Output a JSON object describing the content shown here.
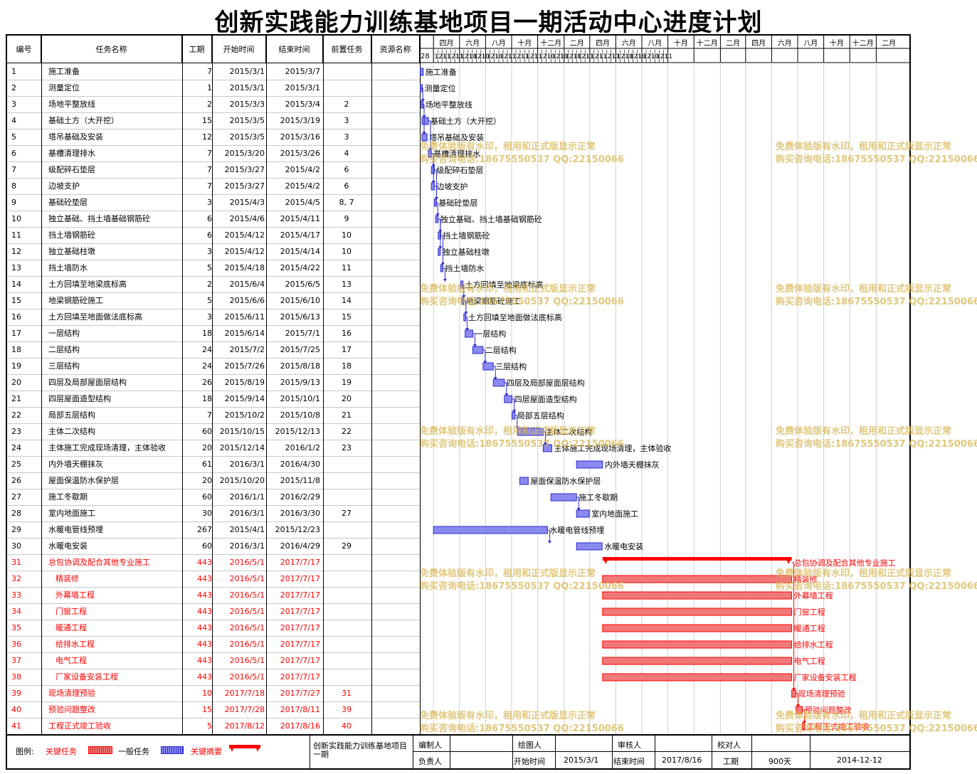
{
  "title": "创新实践能力训练基地项目一期活动中心进度计划",
  "table": {
    "headers": {
      "no": "编号",
      "name": "任务名称",
      "duration": "工期",
      "start": "开始时间",
      "end": "结束时间",
      "pred": "前置任务",
      "resource": "资源名称"
    }
  },
  "tasks": [
    {
      "no": "1",
      "name": "施工准备",
      "dur": "7",
      "start": "2015/3/1",
      "end": "2015/3/7",
      "pred": "",
      "critical": false
    },
    {
      "no": "2",
      "name": "测量定位",
      "dur": "1",
      "start": "2015/3/1",
      "end": "2015/3/1",
      "pred": "",
      "critical": false
    },
    {
      "no": "3",
      "name": "场地平整放线",
      "dur": "2",
      "start": "2015/3/3",
      "end": "2015/3/4",
      "pred": "2",
      "critical": false
    },
    {
      "no": "4",
      "name": "基础土方（大开挖）",
      "dur": "15",
      "start": "2015/3/5",
      "end": "2015/3/19",
      "pred": "3",
      "critical": false
    },
    {
      "no": "5",
      "name": "塔吊基础及安装",
      "dur": "12",
      "start": "2015/3/5",
      "end": "2015/3/16",
      "pred": "3",
      "critical": false
    },
    {
      "no": "6",
      "name": "基槽清理排水",
      "dur": "7",
      "start": "2015/3/20",
      "end": "2015/3/26",
      "pred": "4",
      "critical": false
    },
    {
      "no": "7",
      "name": "级配碎石垫层",
      "dur": "7",
      "start": "2015/3/27",
      "end": "2015/4/2",
      "pred": "6",
      "critical": false
    },
    {
      "no": "8",
      "name": "边坡支护",
      "dur": "7",
      "start": "2015/3/27",
      "end": "2015/4/2",
      "pred": "6",
      "critical": false
    },
    {
      "no": "9",
      "name": "基础砼垫层",
      "dur": "3",
      "start": "2015/4/3",
      "end": "2015/4/5",
      "pred": "8, 7",
      "critical": false
    },
    {
      "no": "10",
      "name": "独立基础、挡土墙基础钢筋砼",
      "dur": "6",
      "start": "2015/4/6",
      "end": "2015/4/11",
      "pred": "9",
      "critical": false
    },
    {
      "no": "11",
      "name": "挡土墙钢筋砼",
      "dur": "6",
      "start": "2015/4/12",
      "end": "2015/4/17",
      "pred": "10",
      "critical": false
    },
    {
      "no": "12",
      "name": "独立基础柱墩",
      "dur": "3",
      "start": "2015/4/12",
      "end": "2015/4/14",
      "pred": "10",
      "critical": false
    },
    {
      "no": "13",
      "name": "挡土墙防水",
      "dur": "5",
      "start": "2015/4/18",
      "end": "2015/4/22",
      "pred": "11",
      "critical": false
    },
    {
      "no": "14",
      "name": "土方回填至地梁底标高",
      "dur": "2",
      "start": "2015/6/4",
      "end": "2015/6/5",
      "pred": "13",
      "critical": false
    },
    {
      "no": "15",
      "name": "地梁钢筋砼施工",
      "dur": "5",
      "start": "2015/6/6",
      "end": "2015/6/10",
      "pred": "14",
      "critical": false
    },
    {
      "no": "16",
      "name": "土方回填至地面做法底标高",
      "dur": "3",
      "start": "2015/6/11",
      "end": "2015/6/13",
      "pred": "15",
      "critical": false
    },
    {
      "no": "17",
      "name": "一层结构",
      "dur": "18",
      "start": "2015/6/14",
      "end": "2015/7/1",
      "pred": "16",
      "critical": false
    },
    {
      "no": "18",
      "name": "二层结构",
      "dur": "24",
      "start": "2015/7/2",
      "end": "2015/7/25",
      "pred": "17",
      "critical": false
    },
    {
      "no": "19",
      "name": "三层结构",
      "dur": "24",
      "start": "2015/7/26",
      "end": "2015/8/18",
      "pred": "18",
      "critical": false
    },
    {
      "no": "20",
      "name": "四层及局部屋面层结构",
      "dur": "26",
      "start": "2015/8/19",
      "end": "2015/9/13",
      "pred": "19",
      "critical": false
    },
    {
      "no": "21",
      "name": "四层屋面造型结构",
      "dur": "18",
      "start": "2015/9/14",
      "end": "2015/10/1",
      "pred": "20",
      "critical": false
    },
    {
      "no": "22",
      "name": "局部五层结构",
      "dur": "7",
      "start": "2015/10/2",
      "end": "2015/10/8",
      "pred": "21",
      "critical": false
    },
    {
      "no": "23",
      "name": "主体二次结构",
      "dur": "60",
      "start": "2015/10/15",
      "end": "2015/12/13",
      "pred": "22",
      "critical": false
    },
    {
      "no": "24",
      "name": "主体施工完成现场清理，主体验收",
      "dur": "20",
      "start": "2015/12/14",
      "end": "2016/1/2",
      "pred": "23",
      "critical": false
    },
    {
      "no": "25",
      "name": "内外墙天棚抹灰",
      "dur": "61",
      "start": "2016/3/1",
      "end": "2016/4/30",
      "pred": "",
      "critical": false
    },
    {
      "no": "26",
      "name": "屋面保温防水保护层",
      "dur": "20",
      "start": "2015/10/20",
      "end": "2015/11/8",
      "pred": "",
      "critical": false
    },
    {
      "no": "27",
      "name": "施工冬歇期",
      "dur": "60",
      "start": "2016/1/1",
      "end": "2016/2/29",
      "pred": "",
      "critical": false
    },
    {
      "no": "28",
      "name": "室内地面施工",
      "dur": "30",
      "start": "2016/3/1",
      "end": "2016/3/30",
      "pred": "27",
      "critical": false
    },
    {
      "no": "29",
      "name": "水暖电管线预埋",
      "dur": "267",
      "start": "2015/4/1",
      "end": "2015/12/23",
      "pred": "",
      "critical": false
    },
    {
      "no": "30",
      "name": "水暖电安装",
      "dur": "60",
      "start": "2016/3/1",
      "end": "2016/4/29",
      "pred": "29",
      "critical": false
    },
    {
      "no": "31",
      "name": "总包协调及配合其他专业施工",
      "dur": "443",
      "start": "2016/5/1",
      "end": "2017/7/17",
      "pred": "",
      "critical": true,
      "summary": true,
      "gname": "总包协调及配合其他专业施工"
    },
    {
      "no": "32",
      "name": "精装修",
      "dur": "443",
      "start": "2016/5/1",
      "end": "2017/7/17",
      "pred": "",
      "critical": true,
      "indent": true
    },
    {
      "no": "33",
      "name": "外幕墙工程",
      "dur": "443",
      "start": "2016/5/1",
      "end": "2017/7/17",
      "pred": "",
      "critical": true,
      "indent": true
    },
    {
      "no": "34",
      "name": "门窗工程",
      "dur": "443",
      "start": "2016/5/1",
      "end": "2017/7/17",
      "pred": "",
      "critical": true,
      "indent": true
    },
    {
      "no": "35",
      "name": "暖通工程",
      "dur": "443",
      "start": "2016/5/1",
      "end": "2017/7/17",
      "pred": "",
      "critical": true,
      "indent": true
    },
    {
      "no": "36",
      "name": "给排水工程",
      "dur": "443",
      "start": "2016/5/1",
      "end": "2017/7/17",
      "pred": "",
      "critical": true,
      "indent": true
    },
    {
      "no": "37",
      "name": "电气工程",
      "dur": "443",
      "start": "2016/5/1",
      "end": "2017/7/17",
      "pred": "",
      "critical": true,
      "indent": true
    },
    {
      "no": "38",
      "name": "厂家设备安装工程",
      "dur": "443",
      "start": "2016/5/1",
      "end": "2017/7/17",
      "pred": "",
      "critical": true,
      "indent": true
    },
    {
      "no": "39",
      "name": "现场清理预验",
      "dur": "10",
      "start": "2017/7/18",
      "end": "2017/7/27",
      "pred": "31",
      "critical": true
    },
    {
      "no": "40",
      "name": "预验问题整改",
      "dur": "15",
      "start": "2017/7/28",
      "end": "2017/8/11",
      "pred": "39",
      "critical": true
    },
    {
      "no": "41",
      "name": "工程正式竣工验收",
      "dur": "5",
      "start": "2017/8/12",
      "end": "2017/8/16",
      "pred": "40",
      "critical": true
    }
  ],
  "timeline": {
    "months": [
      "四月",
      "六月",
      "八月",
      "十月",
      "十二月",
      "二月",
      "四月",
      "六月",
      "八月",
      "十月",
      "十二月",
      "二月",
      "四月",
      "六月",
      "八月",
      "十月",
      "十二月",
      "二月"
    ],
    "first_day_label": "28",
    "sub_ticks": [
      "1",
      "21",
      "11",
      "1",
      "21",
      "11",
      "1",
      "21",
      "10",
      "1",
      "21",
      "10",
      "1",
      "21",
      "10",
      "1",
      "21",
      "11",
      "1",
      "21",
      "11",
      "1",
      "21",
      "11",
      "1",
      "21",
      "10",
      "1",
      "21",
      "10",
      "1",
      "21",
      "10",
      "1",
      "21",
      "11",
      "1",
      "21",
      "11",
      "1",
      "21",
      "11",
      "1",
      "21",
      "10",
      "1",
      "21",
      "10",
      "1",
      "21",
      "10",
      "1",
      "21",
      "11"
    ]
  },
  "watermark": {
    "line1": "免费体验版有水印，租用和正式版显示正常",
    "line2": "购买咨询电话:18675550537 QQ:22150066"
  },
  "colors": {
    "normal": "#2b2bd0",
    "critical": "#ff0000",
    "normal_fill": "#8a8af0",
    "critical_fill": "#f07878"
  },
  "footer": {
    "legend_label": "图例:",
    "legend_critical": "关键任务",
    "legend_normal": "一般任务",
    "legend_summary": "关键摘要",
    "project_name": "创新实践能力训练基地项目一期",
    "compiler": "编制人",
    "responsible": "负责人",
    "drawer": "绘图人",
    "start_time_label": "开始时间",
    "start_time": "2015/3/1",
    "reviewer": "审核人",
    "end_time_label": "结束时间",
    "end_time": "2017/8/16",
    "checker": "校对人",
    "duration_label": "工期",
    "duration": "900天",
    "date": "2014-12-12"
  }
}
